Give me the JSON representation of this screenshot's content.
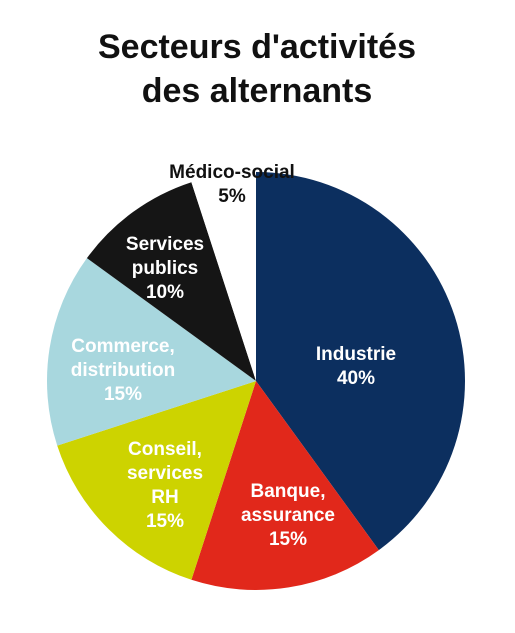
{
  "chart_data": {
    "type": "pie",
    "title": "Secteurs d'activités\ndes alternants",
    "categories": [
      "Industrie",
      "Banque,\nassurance",
      "Conseil,\nservices\nRH",
      "Commerce,\ndistribution",
      "Services\npublics",
      "Médico-social"
    ],
    "values": [
      40,
      15,
      15,
      15,
      10,
      5
    ],
    "value_labels": [
      "40%",
      "15%",
      "15%",
      "15%",
      "10%",
      "5%"
    ],
    "colors": [
      "#0c2f5f",
      "#e1281b",
      "#cdd300",
      "#a8d7de",
      "#151515",
      "#ffffff"
    ]
  }
}
